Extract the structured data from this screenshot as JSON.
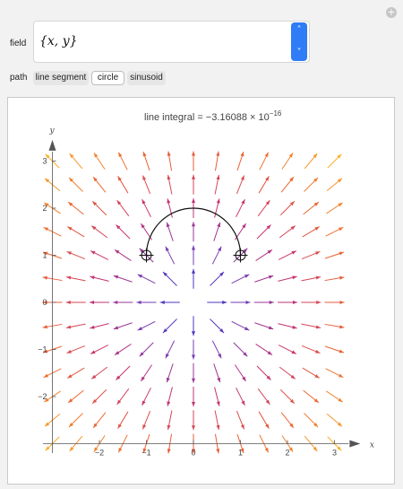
{
  "controls": {
    "field_label": "field",
    "field_value": "{x, y}",
    "path_label": "path",
    "path_options": [
      "line segment",
      "circle",
      "sinusoid"
    ],
    "selected_path": "circle",
    "add_button_icon": "plus-icon",
    "stepper_icon": "up-down-chevron-icon"
  },
  "plot": {
    "title_prefix": "line integral = −3.16088 × 10",
    "title_exponent": "−16",
    "x_axis_label": "x",
    "y_axis_label": "y",
    "x_ticks": [
      "−2",
      "−1",
      "0",
      "1",
      "2",
      "3"
    ],
    "y_ticks": [
      "3",
      "2",
      "1",
      "0",
      "−1",
      "−2"
    ],
    "accent_color": "#2f7cf6"
  },
  "chart_data": {
    "type": "vector-field",
    "title": "line integral = −3.16088 × 10^−16",
    "field": "{x, y}",
    "xlabel": "x",
    "ylabel": "y",
    "xlim": [
      -3,
      3
    ],
    "ylim": [
      -3,
      3
    ],
    "path": {
      "kind": "circle",
      "center": [
        0,
        1
      ],
      "radius": 1,
      "arc_from_deg": 0,
      "arc_to_deg": 180,
      "endpoints": [
        [
          -1,
          1
        ],
        [
          1,
          1
        ]
      ]
    },
    "line_integral": -3.16088e-16
  }
}
